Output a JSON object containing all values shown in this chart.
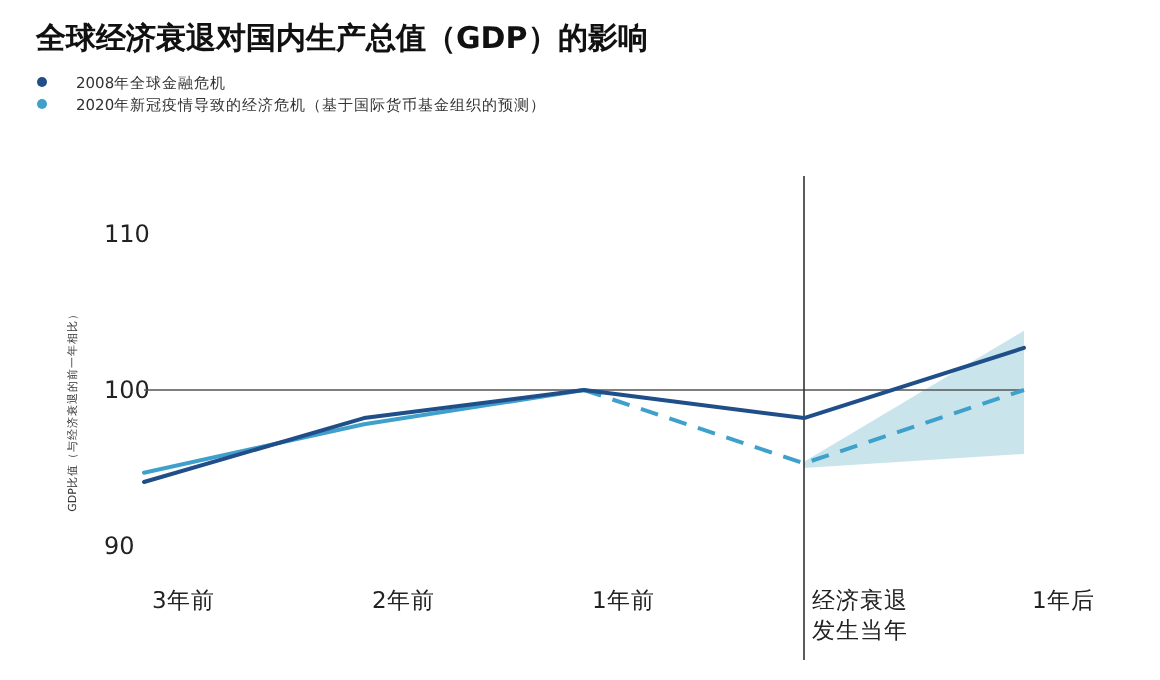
{
  "chart_data": {
    "type": "line",
    "title": "全球经济衰退对国内生产总值（GDP）的影响",
    "ylabel": "GDP比值（与经济衰退的前一年相比）",
    "categories": [
      "3年前",
      "2年前",
      "1年前",
      "经济衰退发生当年",
      "1年后"
    ],
    "series": [
      {
        "name": "2008年全球金融危机",
        "color": "#1f4e89",
        "values": [
          94.1,
          98.2,
          100,
          98.2,
          102.7
        ],
        "line_style": "solid"
      },
      {
        "name": "2020年新冠疫情导致的经济危机（基于国际货币基金组织的预测）",
        "color": "#3fa0cc",
        "values": [
          94.7,
          97.8,
          100,
          null,
          null
        ],
        "line_style": "solid"
      },
      {
        "color": "#3fa0cc",
        "values": [
          null,
          null,
          100,
          95.3,
          100
        ],
        "line_style": "dashed",
        "lower": [
          null,
          null,
          null,
          95.0,
          95.9
        ],
        "upper": [
          null,
          null,
          null,
          95.4,
          103.8
        ]
      }
    ],
    "ylim": [
      90,
      110
    ],
    "yticks": [
      90,
      100,
      110
    ],
    "grid": false,
    "legend": "top left",
    "marker": "none",
    "ref_lines": [
      {
        "axis": "y",
        "value": 100,
        "color": "#555555"
      },
      {
        "axis": "x",
        "value": "经济衰退发生当年",
        "color": "#333333"
      }
    ]
  }
}
